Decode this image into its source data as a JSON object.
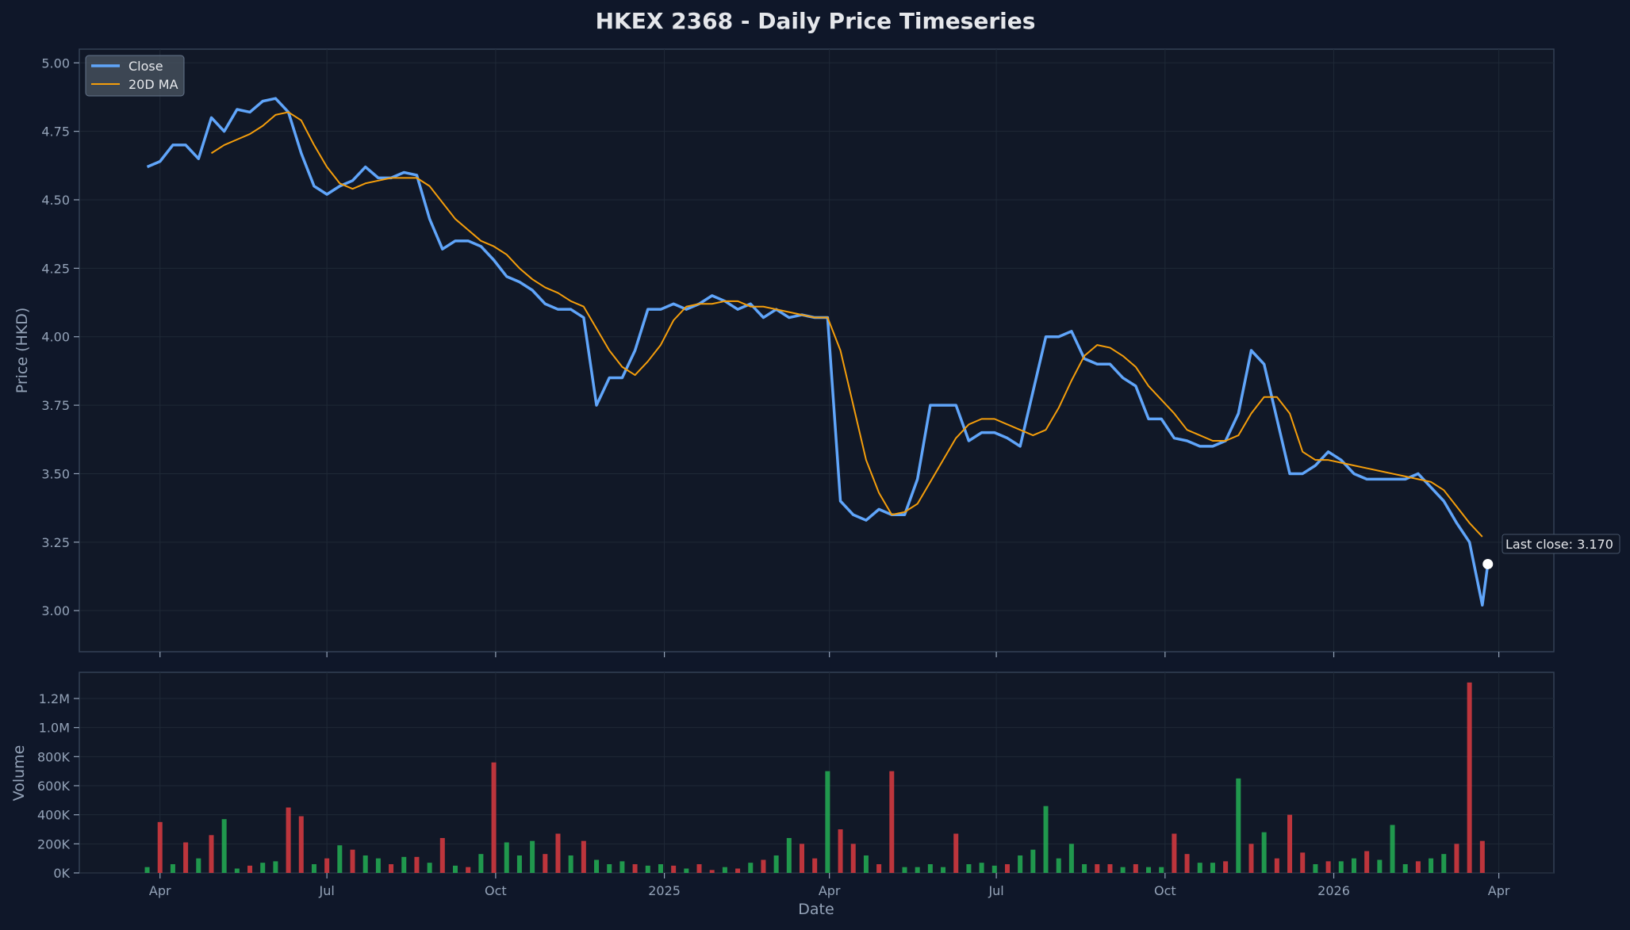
{
  "chart_data": [
    {
      "type": "line",
      "title": "HKEX 2368 - Daily Price Timeseries",
      "xlabel": "",
      "ylabel": "Price (HKD)",
      "xlim": [
        "2024-02-17",
        "2026-05-01"
      ],
      "ylim": [
        2.85,
        5.05
      ],
      "yticks": [
        3.0,
        3.25,
        3.5,
        3.75,
        4.0,
        4.25,
        4.5,
        4.75,
        5.0
      ],
      "ytick_labels": [
        "3.00",
        "3.25",
        "3.50",
        "3.75",
        "4.00",
        "4.25",
        "4.50",
        "4.75",
        "5.00"
      ],
      "grid": true,
      "legend": {
        "placement": "top-left",
        "entries": [
          "Close",
          "20D MA"
        ]
      },
      "colors": {
        "close": "#60a5fa",
        "ma": "#f59e0b",
        "background": "#0f1729",
        "plot_bg": "#111827"
      },
      "x_interval": "weekly from 2024-03-25",
      "series": [
        {
          "name": "Close",
          "first_date": "2024-03-25",
          "last_point": {
            "x": "2026-03-26",
            "y": 3.17
          },
          "values": [
            4.62,
            4.64,
            4.7,
            4.7,
            4.65,
            4.8,
            4.75,
            4.83,
            4.82,
            4.86,
            4.87,
            4.82,
            4.67,
            4.55,
            4.52,
            4.55,
            4.57,
            4.62,
            4.58,
            4.58,
            4.6,
            4.59,
            4.43,
            4.32,
            4.35,
            4.35,
            4.33,
            4.28,
            4.22,
            4.2,
            4.17,
            4.12,
            4.1,
            4.1,
            4.07,
            3.75,
            3.85,
            3.85,
            3.95,
            4.1,
            4.1,
            4.12,
            4.1,
            4.12,
            4.15,
            4.13,
            4.1,
            4.12,
            4.07,
            4.1,
            4.07,
            4.08,
            4.07,
            4.07,
            3.4,
            3.35,
            3.33,
            3.37,
            3.35,
            3.35,
            3.48,
            3.75,
            3.75,
            3.75,
            3.62,
            3.65,
            3.65,
            3.63,
            3.6,
            3.8,
            4.0,
            4.0,
            4.02,
            3.92,
            3.9,
            3.9,
            3.85,
            3.82,
            3.7,
            3.7,
            3.63,
            3.62,
            3.6,
            3.6,
            3.62,
            3.72,
            3.95,
            3.9,
            3.7,
            3.5,
            3.5,
            3.53,
            3.58,
            3.55,
            3.5,
            3.48,
            3.48,
            3.48,
            3.48,
            3.5,
            3.45,
            3.4,
            3.32,
            3.25,
            3.02
          ]
        },
        {
          "name": "20D MA",
          "first_date": "2024-04-29",
          "values": [
            4.67,
            4.7,
            4.72,
            4.74,
            4.77,
            4.81,
            4.82,
            4.79,
            4.7,
            4.62,
            4.56,
            4.54,
            4.56,
            4.57,
            4.58,
            4.58,
            4.58,
            4.55,
            4.49,
            4.43,
            4.39,
            4.35,
            4.33,
            4.3,
            4.25,
            4.21,
            4.18,
            4.16,
            4.13,
            4.11,
            4.03,
            3.95,
            3.89,
            3.86,
            3.91,
            3.97,
            4.06,
            4.11,
            4.12,
            4.12,
            4.13,
            4.13,
            4.11,
            4.11,
            4.1,
            4.09,
            4.08,
            4.07,
            4.07,
            3.95,
            3.75,
            3.55,
            3.43,
            3.35,
            3.36,
            3.39,
            3.47,
            3.55,
            3.63,
            3.68,
            3.7,
            3.7,
            3.68,
            3.66,
            3.64,
            3.66,
            3.74,
            3.84,
            3.93,
            3.97,
            3.96,
            3.93,
            3.89,
            3.82,
            3.77,
            3.72,
            3.66,
            3.64,
            3.62,
            3.62,
            3.64,
            3.72,
            3.78,
            3.78,
            3.72,
            3.58,
            3.55,
            3.55,
            3.54,
            3.53,
            3.52,
            3.51,
            3.5,
            3.49,
            3.48,
            3.47,
            3.44,
            3.38,
            3.32,
            3.27
          ]
        }
      ],
      "annotation": "Last close: 3.170"
    },
    {
      "type": "bar",
      "xlabel": "Date",
      "ylabel": "Volume",
      "ylim": [
        0,
        1380000
      ],
      "yticks": [
        0,
        200000,
        400000,
        600000,
        800000,
        1000000,
        1200000
      ],
      "ytick_labels": [
        "0K",
        "200K",
        "400K",
        "600K",
        "800K",
        "1.0M",
        "1.2M"
      ],
      "xticks": [
        "2024-04-01",
        "2024-07-01",
        "2024-10-01",
        "2025-01-01",
        "2025-04-01",
        "2025-07-01",
        "2025-10-01",
        "2026-01-01",
        "2026-04-01"
      ],
      "xtick_labels": [
        "Apr",
        "Jul",
        "Oct",
        "2025",
        "Apr",
        "Jul",
        "Oct",
        "2026",
        "Apr"
      ],
      "grid": true,
      "colors": {
        "up": "#22a652",
        "down": "#d0393f"
      },
      "first_date": "2024-03-25",
      "values": [
        40000,
        350000,
        60000,
        210000,
        100000,
        260000,
        370000,
        30000,
        50000,
        70000,
        80000,
        450000,
        390000,
        60000,
        100000,
        190000,
        160000,
        120000,
        100000,
        60000,
        110000,
        110000,
        70000,
        240000,
        50000,
        40000,
        130000,
        760000,
        210000,
        120000,
        220000,
        130000,
        270000,
        120000,
        220000,
        90000,
        60000,
        80000,
        60000,
        50000,
        60000,
        50000,
        30000,
        60000,
        20000,
        40000,
        30000,
        70000,
        90000,
        120000,
        240000,
        200000,
        100000,
        700000,
        300000,
        200000,
        120000,
        60000,
        700000,
        40000,
        40000,
        60000,
        40000,
        270000,
        60000,
        70000,
        50000,
        60000,
        120000,
        160000,
        460000,
        100000,
        200000,
        60000,
        60000,
        60000,
        40000,
        60000,
        40000,
        40000,
        270000,
        130000,
        70000,
        70000,
        80000,
        650000,
        200000,
        280000,
        100000,
        400000,
        140000,
        60000,
        80000,
        80000,
        100000,
        150000,
        90000,
        330000,
        60000,
        80000,
        100000,
        130000,
        200000,
        1310000,
        220000
      ],
      "direction": [
        "up",
        "down",
        "up",
        "down",
        "up",
        "down",
        "up",
        "up",
        "down",
        "up",
        "up",
        "down",
        "down",
        "up",
        "down",
        "up",
        "down",
        "up",
        "up",
        "down",
        "up",
        "down",
        "up",
        "down",
        "up",
        "down",
        "up",
        "down",
        "up",
        "up",
        "up",
        "down",
        "down",
        "up",
        "down",
        "up",
        "up",
        "up",
        "down",
        "up",
        "up",
        "down",
        "up",
        "down",
        "down",
        "up",
        "down",
        "up",
        "down",
        "up",
        "up",
        "down",
        "down",
        "up",
        "down",
        "down",
        "up",
        "down",
        "down",
        "up",
        "up",
        "up",
        "up",
        "down",
        "up",
        "up",
        "up",
        "down",
        "up",
        "up",
        "up",
        "up",
        "up",
        "up",
        "down",
        "down",
        "up",
        "down",
        "up",
        "up",
        "down",
        "down",
        "up",
        "up",
        "down",
        "up",
        "down",
        "up",
        "down",
        "down",
        "down",
        "up",
        "down",
        "up",
        "up",
        "down",
        "up",
        "up",
        "up",
        "down",
        "up",
        "up",
        "down",
        "down",
        "down"
      ]
    }
  ]
}
